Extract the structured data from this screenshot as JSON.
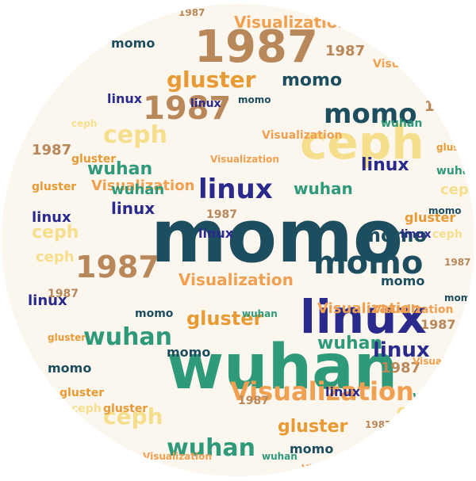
{
  "words": [
    {
      "text": "momo",
      "color": "#1d4e5f"
    },
    {
      "text": "wuhan",
      "color": "#2f9a7a"
    },
    {
      "text": "linux",
      "color": "#2a2a8c"
    },
    {
      "text": "ceph",
      "color": "#f6df8c"
    },
    {
      "text": "1987",
      "color": "#b8875a"
    },
    {
      "text": "gluster",
      "color": "#e89a34"
    },
    {
      "text": "Visualization",
      "color": "#f0a050"
    }
  ],
  "background": {
    "disc": "#fbf6ee",
    "page": "#ffffff"
  }
}
